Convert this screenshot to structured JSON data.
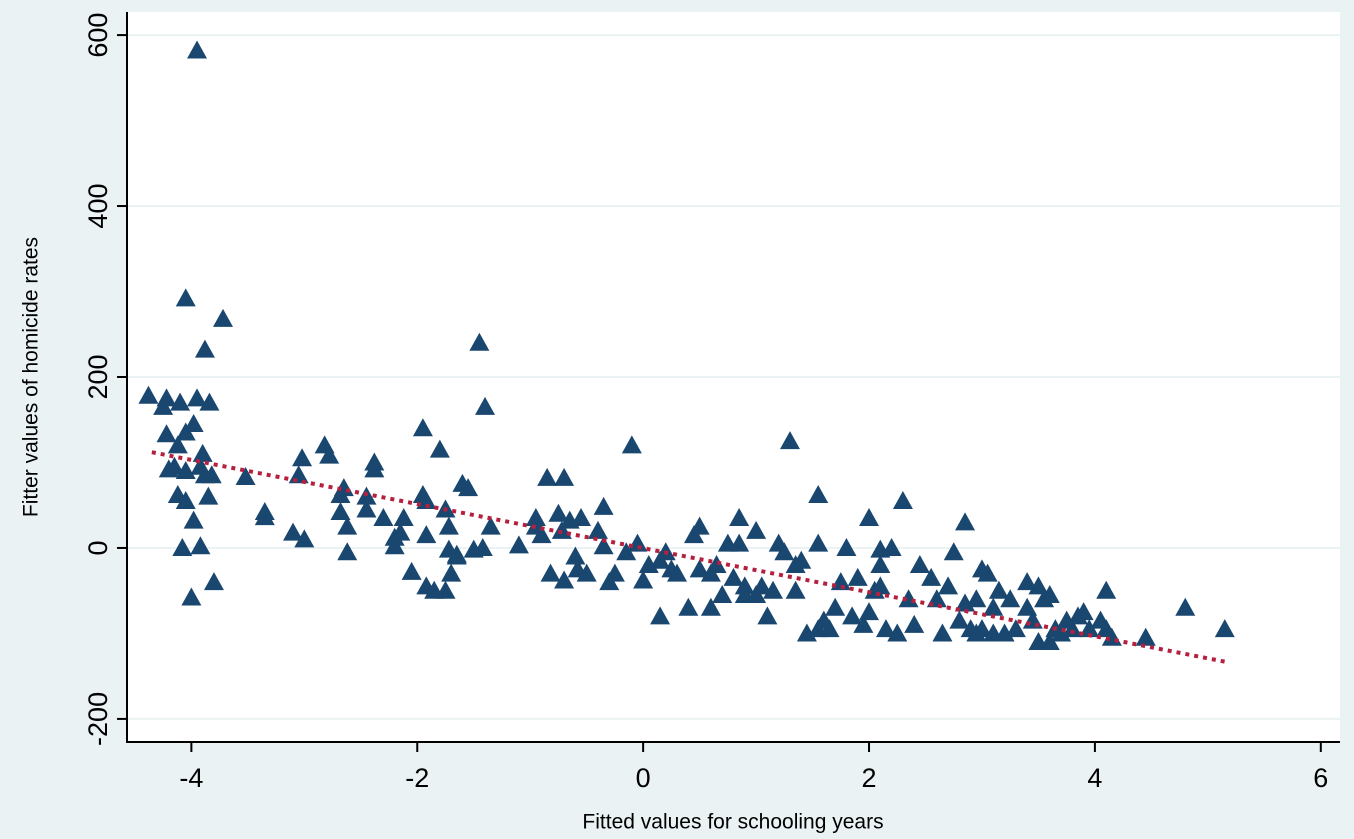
{
  "chart_data": {
    "type": "scatter",
    "xlabel": "Fitted values for schooling years",
    "ylabel": "Fitter values of homicide rates",
    "xlim": [
      -4.57,
      6.17
    ],
    "ylim": [
      -227,
      627
    ],
    "xticks": [
      -4,
      -2,
      0,
      2,
      4,
      6
    ],
    "yticks": [
      -200,
      0,
      200,
      400,
      600
    ],
    "grid": true,
    "series": [
      {
        "color": "#1a476f",
        "marker": "triangle",
        "x": [
          -4.38,
          -4.22,
          -4.25,
          -4.1,
          -4.22,
          -4.12,
          -4.05,
          -3.98,
          -3.95,
          -3.9,
          -4.15,
          -4.2,
          -4.05,
          -3.92,
          -3.88,
          -3.82,
          -4.12,
          -4.05,
          -3.85,
          -3.98,
          -4.08,
          -3.92,
          -4.0,
          -3.8,
          -4.05,
          -3.95,
          -3.88,
          -3.72,
          -3.84,
          -3.52,
          -3.35,
          -3.35,
          -3.1,
          -3.02,
          -3.05,
          -3.0,
          -2.82,
          -2.78,
          -2.65,
          -2.68,
          -2.68,
          -2.62,
          -2.62,
          -2.45,
          -2.45,
          -2.38,
          -2.38,
          -2.3,
          -2.2,
          -2.15,
          -2.12,
          -2.05,
          -1.95,
          -1.95,
          -1.92,
          -1.92,
          -1.92,
          -1.85,
          -1.75,
          -1.8,
          -1.75,
          -1.72,
          -1.72,
          -1.65,
          -1.7,
          -1.6,
          -1.55,
          -1.5,
          -1.45,
          -1.4,
          -1.35,
          -1.42,
          -1.1,
          -0.95,
          -0.95,
          -0.9,
          -0.85,
          -0.82,
          -0.75,
          -0.72,
          -0.7,
          -0.7,
          -0.65,
          -0.6,
          -0.58,
          -0.55,
          -0.5,
          -0.4,
          -0.35,
          -0.35,
          -0.3,
          -0.25,
          -0.15,
          -0.1,
          -0.05,
          0.0,
          0.15,
          0.15,
          0.2,
          0.3,
          0.4,
          0.45,
          0.5,
          0.5,
          0.6,
          0.6,
          0.65,
          0.7,
          0.75,
          0.8,
          0.85,
          0.85,
          0.9,
          0.9,
          1.0,
          1.0,
          1.05,
          1.1,
          1.15,
          1.2,
          1.25,
          1.3,
          1.35,
          1.35,
          1.4,
          1.45,
          1.55,
          1.55,
          1.6,
          1.65,
          1.7,
          1.75,
          1.8,
          1.85,
          1.9,
          1.95,
          2.0,
          2.0,
          2.05,
          2.1,
          2.1,
          2.15,
          2.2,
          2.25,
          2.3,
          2.35,
          2.4,
          2.45,
          2.55,
          2.6,
          2.65,
          2.7,
          2.75,
          2.8,
          2.85,
          2.85,
          2.9,
          2.95,
          3.0,
          3.05,
          3.1,
          3.1,
          3.15,
          3.2,
          3.25,
          3.3,
          3.4,
          3.45,
          3.5,
          3.55,
          3.6,
          3.6,
          3.65,
          3.7,
          3.75,
          3.8,
          3.9,
          3.95,
          4.05,
          4.1,
          4.15,
          4.1,
          4.45,
          4.8,
          5.15,
          2.1,
          1.55,
          3.0,
          2.95,
          3.5,
          3.85,
          3.4,
          -2.2,
          -1.65,
          0.05,
          0.25
        ],
        "values": [
          178,
          175,
          165,
          170,
          133,
          120,
          135,
          145,
          175,
          110,
          95,
          92,
          90,
          95,
          85,
          85,
          62,
          55,
          60,
          32,
          0,
          2,
          -58,
          -40,
          292,
          582,
          232,
          268,
          170,
          83,
          42,
          36,
          18,
          105,
          85,
          10,
          120,
          108,
          70,
          62,
          42,
          25,
          -5,
          60,
          45,
          100,
          92,
          35,
          2,
          18,
          35,
          -28,
          140,
          62,
          55,
          15,
          -45,
          -50,
          -50,
          115,
          45,
          25,
          -2,
          -8,
          -30,
          75,
          70,
          -2,
          240,
          165,
          25,
          0,
          3,
          35,
          25,
          15,
          82,
          -30,
          40,
          20,
          -38,
          82,
          32,
          -10,
          -25,
          35,
          -30,
          20,
          48,
          2,
          -40,
          -30,
          -5,
          120,
          5,
          -38,
          -15,
          -80,
          -5,
          -30,
          -70,
          15,
          25,
          -25,
          -30,
          -70,
          -20,
          -55,
          5,
          -35,
          5,
          35,
          -45,
          -55,
          -55,
          20,
          -45,
          -80,
          -50,
          5,
          -5,
          125,
          -20,
          -50,
          -15,
          -100,
          5,
          62,
          -85,
          -95,
          -70,
          -40,
          0,
          -80,
          -35,
          -90,
          -75,
          35,
          -50,
          -20,
          -45,
          -95,
          0,
          -100,
          55,
          -60,
          -90,
          -20,
          -35,
          -60,
          -100,
          -45,
          -5,
          -85,
          30,
          -65,
          -95,
          -60,
          -25,
          -30,
          -70,
          -100,
          -50,
          -100,
          -60,
          -95,
          -70,
          -85,
          -45,
          -60,
          -55,
          -110,
          -95,
          -100,
          -85,
          -95,
          -75,
          -95,
          -85,
          -95,
          -105,
          -50,
          -105,
          -70,
          -95,
          -2,
          -95,
          -95,
          -100,
          -110,
          -80,
          -40,
          12,
          -10,
          -20,
          -25
        ]
      },
      {
        "color": "#b5203f",
        "kind": "line",
        "style": "dotted",
        "x": [
          -4.35,
          5.15
        ],
        "values": [
          112,
          -133
        ]
      }
    ]
  }
}
